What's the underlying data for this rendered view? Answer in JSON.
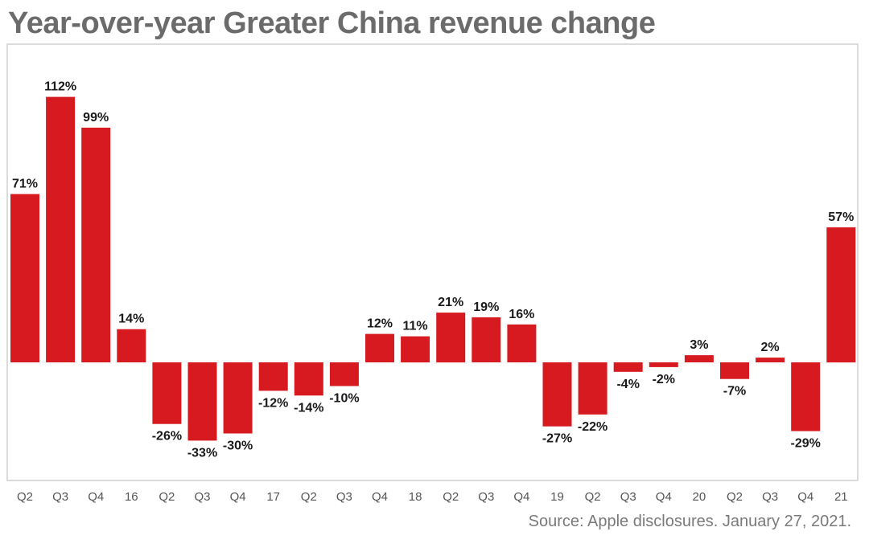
{
  "chart_data": {
    "type": "bar",
    "title": "Year-over-year Greater China revenue change",
    "categories": [
      "Q2",
      "Q3",
      "Q4",
      "16",
      "Q2",
      "Q3",
      "Q4",
      "17",
      "Q2",
      "Q3",
      "Q4",
      "18",
      "Q2",
      "Q3",
      "Q4",
      "19",
      "Q2",
      "Q3",
      "Q4",
      "20",
      "Q2",
      "Q3",
      "Q4",
      "21"
    ],
    "values": [
      71,
      112,
      99,
      14,
      -26,
      -33,
      -30,
      -12,
      -14,
      -10,
      12,
      11,
      21,
      19,
      16,
      -27,
      -22,
      -4,
      -2,
      3,
      -7,
      2,
      -29,
      57
    ],
    "value_suffix": "%",
    "xlabel": "",
    "ylabel": "",
    "ylim": [
      -50,
      125
    ],
    "grid": false,
    "legend": "none",
    "bar_color": "#d71920",
    "frame_color": "#cfcfcf",
    "source": "Source: Apple disclosures. January 27, 2021."
  }
}
